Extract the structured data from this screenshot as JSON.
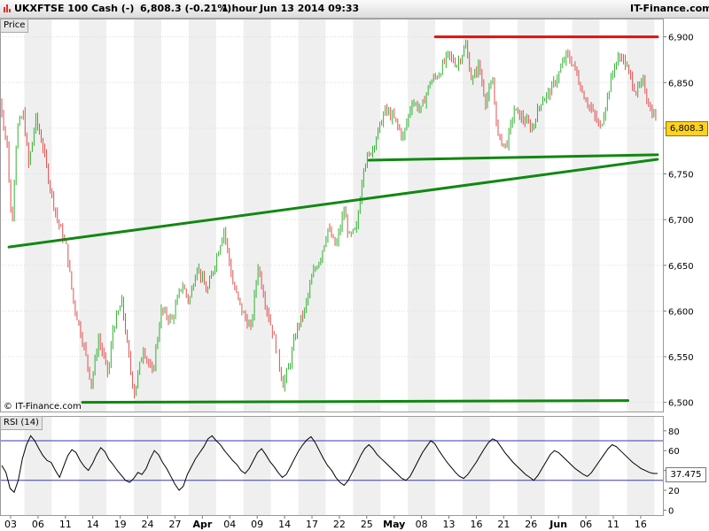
{
  "header": {
    "symbol": "UKX",
    "instrument": "FTSE 100 Cash (-)",
    "quote": "6,808.3 (-0.21%)",
    "timeframe": "1 hour",
    "datetime": "Jun 13 2014 09:33",
    "brand": "IT-Finance.com"
  },
  "panes": {
    "price_label": "Price",
    "rsi_label": "RSI (14)",
    "watermark": "© IT-Finance.com",
    "last_price_label": "6,808.3",
    "rsi_value_label": "37.475"
  },
  "colors": {
    "up": "#33b233",
    "down": "#e05050",
    "trendline": "#118811",
    "resistance": "#e01010",
    "rsi_line": "#000000",
    "rsi_band": "#3a3ab0",
    "gridband": "#efefef",
    "last_price_bg": "#ffd21f"
  },
  "chart_data": [
    {
      "type": "line",
      "title": "",
      "x_axis_labels": [
        "03",
        "06",
        "11",
        "14",
        "19",
        "24",
        "27",
        "Apr",
        "04",
        "09",
        "14",
        "17",
        "22",
        "25",
        "May",
        "08",
        "13",
        "16",
        "21",
        "26",
        "Jun",
        "06",
        "11",
        "16"
      ],
      "y_ticks": [
        "6,900",
        "6,850",
        "6,800",
        "6,750",
        "6,700",
        "6,650",
        "6,600",
        "6,550",
        "6,500"
      ],
      "ylim": [
        6490,
        6920
      ],
      "grid": true,
      "price_path": [
        {
          "x": 0,
          "y": 6830
        },
        {
          "x": 0.8,
          "y": 6780
        },
        {
          "x": 1.3,
          "y": 6690
        },
        {
          "x": 1.9,
          "y": 6800
        },
        {
          "x": 2.6,
          "y": 6815
        },
        {
          "x": 3.2,
          "y": 6760
        },
        {
          "x": 4.0,
          "y": 6810
        },
        {
          "x": 4.8,
          "y": 6780
        },
        {
          "x": 5.5,
          "y": 6740
        },
        {
          "x": 6.4,
          "y": 6700
        },
        {
          "x": 7.4,
          "y": 6670
        },
        {
          "x": 8.2,
          "y": 6610
        },
        {
          "x": 9.4,
          "y": 6560
        },
        {
          "x": 10.2,
          "y": 6520
        },
        {
          "x": 11.0,
          "y": 6570
        },
        {
          "x": 12.1,
          "y": 6530
        },
        {
          "x": 12.6,
          "y": 6580
        },
        {
          "x": 13.6,
          "y": 6610
        },
        {
          "x": 14.5,
          "y": 6540
        },
        {
          "x": 15.0,
          "y": 6510
        },
        {
          "x": 16.0,
          "y": 6560
        },
        {
          "x": 17.0,
          "y": 6530
        },
        {
          "x": 18.0,
          "y": 6600
        },
        {
          "x": 19.2,
          "y": 6590
        },
        {
          "x": 20.3,
          "y": 6630
        },
        {
          "x": 21.1,
          "y": 6610
        },
        {
          "x": 22.0,
          "y": 6650
        },
        {
          "x": 23.1,
          "y": 6620
        },
        {
          "x": 24.2,
          "y": 6660
        },
        {
          "x": 25.0,
          "y": 6690
        },
        {
          "x": 26.0,
          "y": 6630
        },
        {
          "x": 27.0,
          "y": 6600
        },
        {
          "x": 28.0,
          "y": 6580
        },
        {
          "x": 28.8,
          "y": 6650
        },
        {
          "x": 29.6,
          "y": 6610
        },
        {
          "x": 30.6,
          "y": 6570
        },
        {
          "x": 31.6,
          "y": 6520
        },
        {
          "x": 32.3,
          "y": 6540
        },
        {
          "x": 33.1,
          "y": 6580
        },
        {
          "x": 34.0,
          "y": 6600
        },
        {
          "x": 34.9,
          "y": 6640
        },
        {
          "x": 35.8,
          "y": 6660
        },
        {
          "x": 36.6,
          "y": 6690
        },
        {
          "x": 37.5,
          "y": 6670
        },
        {
          "x": 38.4,
          "y": 6710
        },
        {
          "x": 39.0,
          "y": 6680
        },
        {
          "x": 39.8,
          "y": 6690
        },
        {
          "x": 40.6,
          "y": 6760
        },
        {
          "x": 41.2,
          "y": 6770
        },
        {
          "x": 42.0,
          "y": 6790
        },
        {
          "x": 43.0,
          "y": 6820
        },
        {
          "x": 44.0,
          "y": 6810
        },
        {
          "x": 45.0,
          "y": 6790
        },
        {
          "x": 46.0,
          "y": 6830
        },
        {
          "x": 47.0,
          "y": 6820
        },
        {
          "x": 48.0,
          "y": 6850
        },
        {
          "x": 49.0,
          "y": 6860
        },
        {
          "x": 50.0,
          "y": 6880
        },
        {
          "x": 51.0,
          "y": 6870
        },
        {
          "x": 52.0,
          "y": 6890
        },
        {
          "x": 52.7,
          "y": 6850
        },
        {
          "x": 53.4,
          "y": 6870
        },
        {
          "x": 54.2,
          "y": 6830
        },
        {
          "x": 55.0,
          "y": 6850
        },
        {
          "x": 55.6,
          "y": 6790
        },
        {
          "x": 56.5,
          "y": 6780
        },
        {
          "x": 57.4,
          "y": 6820
        },
        {
          "x": 58.4,
          "y": 6810
        },
        {
          "x": 59.4,
          "y": 6800
        },
        {
          "x": 60.4,
          "y": 6830
        },
        {
          "x": 61.4,
          "y": 6840
        },
        {
          "x": 62.4,
          "y": 6860
        },
        {
          "x": 63.2,
          "y": 6880
        },
        {
          "x": 64.0,
          "y": 6870
        },
        {
          "x": 65.0,
          "y": 6840
        },
        {
          "x": 66.0,
          "y": 6820
        },
        {
          "x": 67.0,
          "y": 6800
        },
        {
          "x": 67.7,
          "y": 6830
        },
        {
          "x": 68.6,
          "y": 6870
        },
        {
          "x": 69.4,
          "y": 6880
        },
        {
          "x": 70.2,
          "y": 6860
        },
        {
          "x": 71.0,
          "y": 6840
        },
        {
          "x": 71.8,
          "y": 6850
        },
        {
          "x": 72.6,
          "y": 6820
        },
        {
          "x": 73.4,
          "y": 6810
        }
      ],
      "annotations": [
        {
          "name": "rising-support",
          "from": {
            "x": 1.0,
            "y": 6670
          },
          "to": {
            "x": 73.4,
            "y": 6766
          }
        },
        {
          "name": "upper-support",
          "from": {
            "x": 41.2,
            "y": 6765
          },
          "to": {
            "x": 73.4,
            "y": 6771
          }
        },
        {
          "name": "resistance",
          "from": {
            "x": 48.6,
            "y": 6900
          },
          "to": {
            "x": 73.4,
            "y": 6900
          }
        },
        {
          "name": "bottom-support",
          "from": {
            "x": 9.2,
            "y": 6500
          },
          "to": {
            "x": 70.1,
            "y": 6502
          }
        }
      ]
    },
    {
      "type": "line",
      "title": "RSI (14)",
      "y_ticks": [
        "80",
        "60",
        "40",
        "20",
        "0"
      ],
      "ylim": [
        -5,
        95
      ],
      "bands": [
        70,
        30
      ],
      "values": [
        45,
        38,
        22,
        18,
        30,
        52,
        66,
        75,
        70,
        62,
        55,
        50,
        48,
        40,
        33,
        44,
        55,
        61,
        58,
        50,
        44,
        40,
        47,
        56,
        63,
        59,
        51,
        46,
        40,
        35,
        30,
        28,
        32,
        38,
        36,
        42,
        52,
        60,
        56,
        48,
        42,
        34,
        26,
        20,
        24,
        36,
        44,
        52,
        58,
        64,
        72,
        75,
        70,
        66,
        60,
        55,
        50,
        46,
        40,
        37,
        42,
        50,
        58,
        62,
        56,
        49,
        44,
        38,
        33,
        36,
        44,
        52,
        60,
        66,
        71,
        74,
        68,
        60,
        52,
        45,
        40,
        33,
        28,
        25,
        30,
        38,
        46,
        55,
        62,
        66,
        62,
        56,
        52,
        48,
        44,
        40,
        36,
        32,
        30,
        34,
        42,
        50,
        58,
        64,
        70,
        67,
        60,
        54,
        48,
        43,
        38,
        34,
        32,
        36,
        42,
        48,
        55,
        62,
        68,
        72,
        70,
        64,
        58,
        53,
        48,
        44,
        40,
        36,
        33,
        30,
        35,
        42,
        49,
        56,
        60,
        58,
        54,
        50,
        46,
        42,
        39,
        36,
        34,
        38,
        44,
        50,
        56,
        62,
        66,
        64,
        60,
        56,
        52,
        48,
        45,
        42,
        40,
        38,
        37,
        37
      ]
    }
  ]
}
